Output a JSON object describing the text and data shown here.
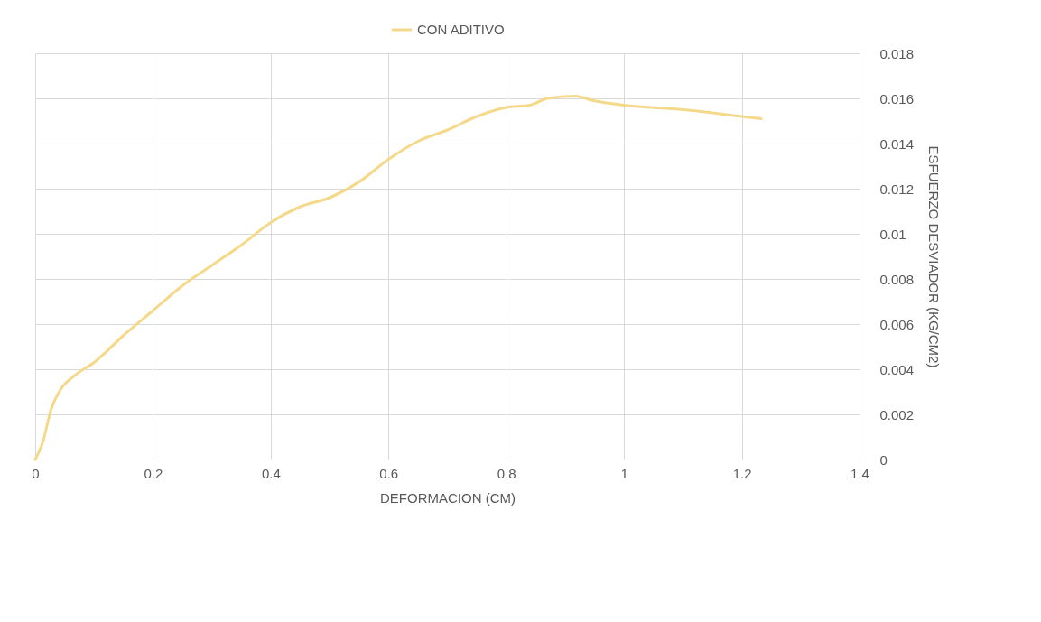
{
  "chart_data": {
    "type": "line",
    "xlabel": "DEFORMACION (CM)",
    "ylabel": "ESFUERZO DESVIADOR (KG/CM2)",
    "xlim": [
      0,
      1.4
    ],
    "xticks": [
      0,
      0.2,
      0.4,
      0.6,
      0.8,
      1,
      1.2,
      1.4
    ],
    "ylim": [
      0,
      0.018
    ],
    "yticks": [
      0,
      0.002,
      0.004,
      0.006,
      0.008,
      0.01,
      0.012,
      0.014,
      0.016,
      0.018
    ],
    "grid": true,
    "legend": "top",
    "line_style": "solid",
    "marker": "none",
    "x": [
      0,
      0.012,
      0.028,
      0.043,
      0.066,
      0.1,
      0.15,
      0.2,
      0.25,
      0.3,
      0.35,
      0.4,
      0.45,
      0.5,
      0.55,
      0.6,
      0.65,
      0.7,
      0.75,
      0.8,
      0.84,
      0.87,
      0.917,
      0.948,
      1,
      1.1,
      1.2,
      1.233
    ],
    "series": [
      {
        "name": "CON ADITIVO",
        "color": "#f5d98a",
        "values": [
          0,
          0.0007,
          0.0023,
          0.0031,
          0.0037,
          0.0043,
          0.0055,
          0.0066,
          0.0077,
          0.0086,
          0.0095,
          0.0105,
          0.0112,
          0.0116,
          0.0123,
          0.0133,
          0.0141,
          0.0146,
          0.0152,
          0.0156,
          0.0157,
          0.016,
          0.0161,
          0.0159,
          0.0157,
          0.0155,
          0.0152,
          0.0151
        ]
      }
    ]
  }
}
